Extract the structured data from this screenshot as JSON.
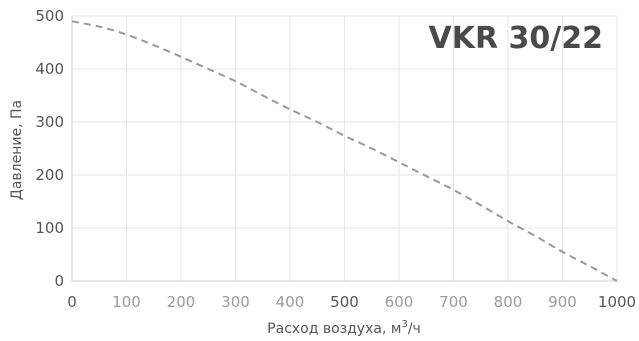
{
  "chart_data": {
    "type": "line",
    "title": "VKR 30/22",
    "xlabel": "Расход воздуха, м³/ч",
    "xlabel_main": "Расход воздуха, м",
    "xlabel_sup": "3",
    "xlabel_tail": "/ч",
    "ylabel": "Давление, Па",
    "xlim": [
      0,
      1000
    ],
    "ylim": [
      0,
      500
    ],
    "x_ticks": [
      "0",
      "100",
      "200",
      "300",
      "400",
      "500",
      "600",
      "700",
      "800",
      "900",
      "1000"
    ],
    "x_ticks_emphasized": [
      "0",
      "500",
      "1000"
    ],
    "y_ticks": [
      "0",
      "100",
      "200",
      "300",
      "400",
      "500"
    ],
    "grid": true,
    "line_style": "dashed",
    "series": [
      {
        "x": [
          0,
          50,
          100,
          150,
          200,
          250,
          300,
          350,
          400,
          450,
          500,
          550,
          600,
          650,
          700,
          750,
          800,
          850,
          900,
          950,
          1000
        ],
        "y": [
          490,
          480,
          465,
          445,
          423,
          400,
          377,
          350,
          324,
          300,
          274,
          250,
          224,
          198,
          172,
          143,
          113,
          85,
          55,
          28,
          0
        ]
      }
    ],
    "colors": {
      "line": "#999999",
      "grid": "#e6e6e6",
      "axis": "#cfcfcf",
      "text": "#555555",
      "muted_text": "#9a9a9a",
      "title": "#4a4a4a"
    }
  }
}
